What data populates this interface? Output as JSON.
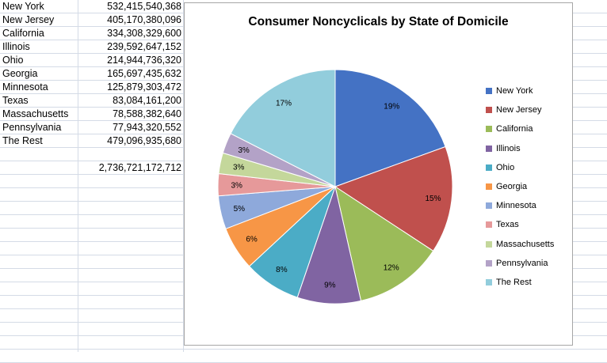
{
  "sheet": {
    "rows": [
      {
        "name": "New York",
        "value": "532,415,540,368"
      },
      {
        "name": "New Jersey",
        "value": "405,170,380,096"
      },
      {
        "name": "California",
        "value": "334,308,329,600"
      },
      {
        "name": "Illinois",
        "value": "239,592,647,152"
      },
      {
        "name": "Ohio",
        "value": "214,944,736,320"
      },
      {
        "name": "Georgia",
        "value": "165,697,435,632"
      },
      {
        "name": "Minnesota",
        "value": "125,879,303,472"
      },
      {
        "name": "Texas",
        "value": "83,084,161,200"
      },
      {
        "name": "Massachusetts",
        "value": "78,588,382,640"
      },
      {
        "name": "Pennsylvania",
        "value": "77,943,320,552"
      },
      {
        "name": "The Rest",
        "value": "479,096,935,680"
      }
    ],
    "total": "2,736,721,172,712"
  },
  "chart_data": {
    "type": "pie",
    "title": "Consumer Noncyclicals by State of Domicile",
    "legend_position": "right",
    "categories": [
      "New York",
      "New Jersey",
      "California",
      "Illinois",
      "Ohio",
      "Georgia",
      "Minnesota",
      "Texas",
      "Massachusetts",
      "Pennsylvania",
      "The Rest"
    ],
    "values": [
      532415540368,
      405170380096,
      334308329600,
      239592647152,
      214944736320,
      165697435632,
      125879303472,
      83084161200,
      78588382640,
      77943320552,
      479096935680
    ],
    "percent_labels": [
      "19%",
      "15%",
      "12%",
      "9%",
      "8%",
      "6%",
      "5%",
      "3%",
      "3%",
      "3%",
      "17%"
    ],
    "colors": [
      "#4472c4",
      "#c0504d",
      "#9bbb59",
      "#8064a2",
      "#4bacc6",
      "#f79646",
      "#8ea9db",
      "#e6999a",
      "#c4d79b",
      "#b3a2c7",
      "#92cddc"
    ]
  }
}
